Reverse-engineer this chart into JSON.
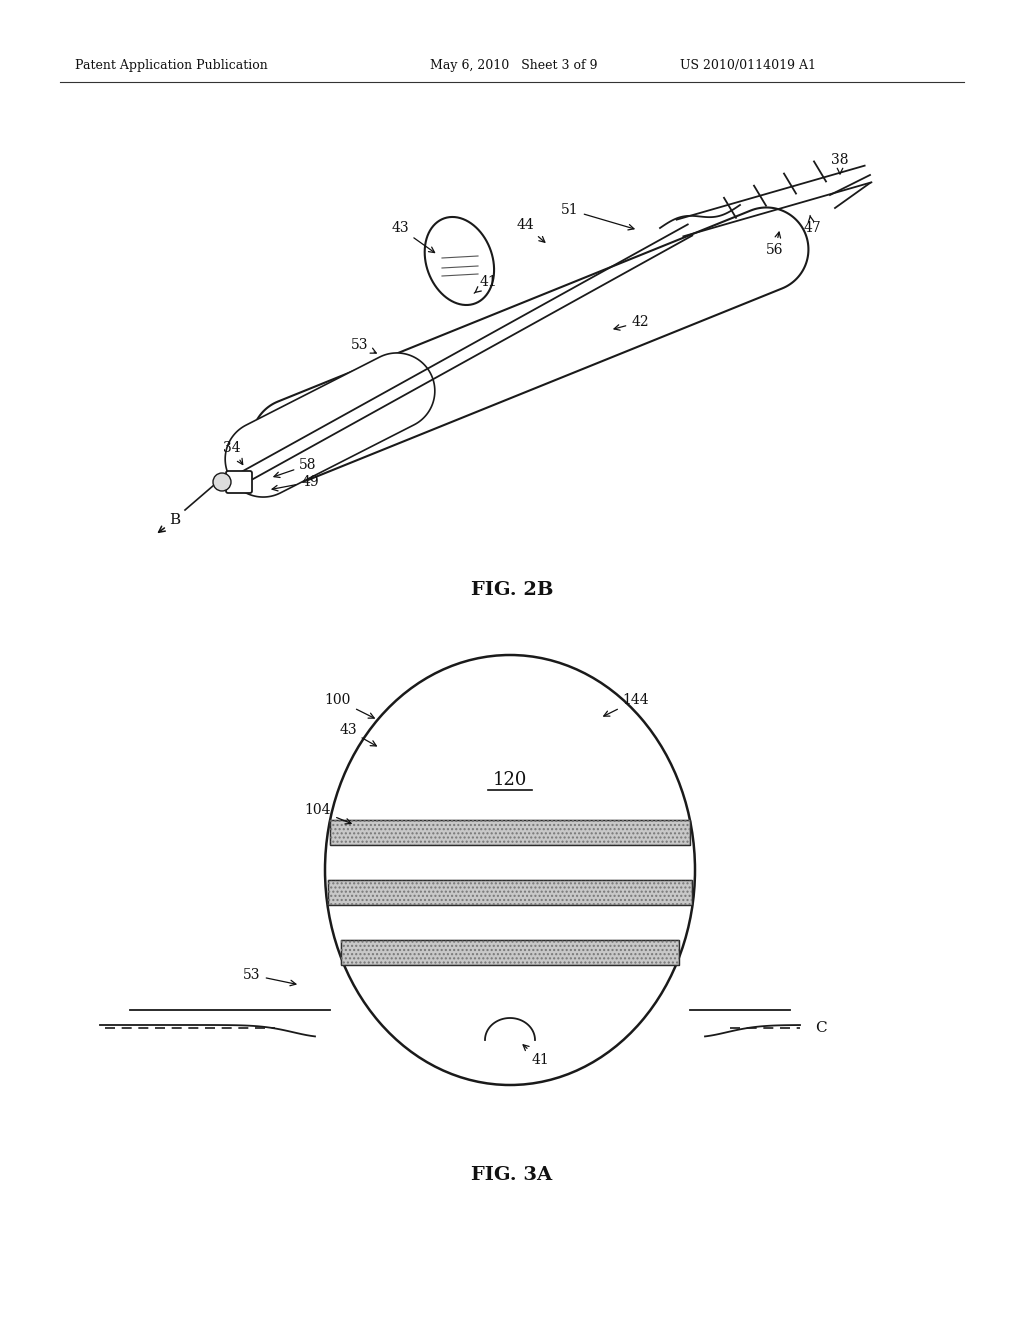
{
  "background_color": "#ffffff",
  "header_left": "Patent Application Publication",
  "header_mid": "May 6, 2010   Sheet 3 of 9",
  "header_right": "US 2010/0114019 A1",
  "fig2b_label": "FIG. 2B",
  "fig3a_label": "FIG. 3A",
  "page_width": 10.24,
  "page_height": 13.2,
  "dpi": 100
}
